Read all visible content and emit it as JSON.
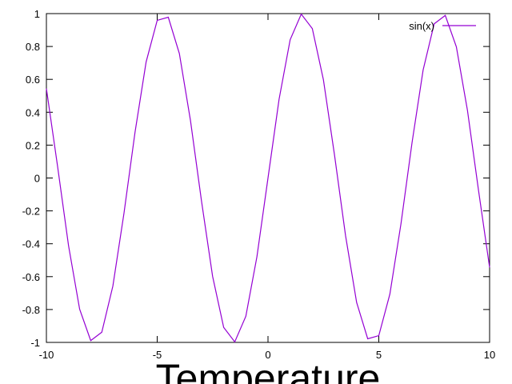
{
  "chart_data": {
    "type": "line",
    "title": "",
    "xlabel": "Temperature",
    "ylabel": "",
    "xlim": [
      -10,
      10
    ],
    "ylim": [
      -1,
      1
    ],
    "x_ticks": [
      -10,
      -5,
      0,
      5,
      10
    ],
    "y_ticks": [
      -1,
      -0.8,
      -0.6,
      -0.4,
      -0.2,
      0,
      0.2,
      0.4,
      0.6,
      0.8,
      1
    ],
    "x_tick_labels": [
      "-10",
      "-5",
      "0",
      "5",
      "10"
    ],
    "y_tick_labels": [
      "-1",
      "-0.8",
      "-0.6",
      "-0.4",
      "-0.2",
      "0",
      "0.2",
      "0.4",
      "0.6",
      "0.8",
      "1"
    ],
    "grid": false,
    "legend_position": "top-right",
    "series": [
      {
        "name": "sin(x)",
        "color": "#9400d3",
        "x": [
          -10,
          -9.5,
          -9,
          -8.5,
          -8,
          -7.5,
          -7,
          -6.5,
          -6,
          -5.5,
          -5,
          -4.5,
          -4,
          -3.5,
          -3,
          -2.5,
          -2,
          -1.5,
          -1,
          -0.5,
          0,
          0.5,
          1,
          1.5,
          2,
          2.5,
          3,
          3.5,
          4,
          4.5,
          5,
          5.5,
          6,
          6.5,
          7,
          7.5,
          8,
          8.5,
          9,
          9.5,
          10
        ],
        "y": [
          0.544,
          0.075,
          -0.412,
          -0.798,
          -0.989,
          -0.938,
          -0.657,
          -0.215,
          0.279,
          0.706,
          0.959,
          0.978,
          0.757,
          0.351,
          -0.141,
          -0.598,
          -0.909,
          -0.997,
          -0.841,
          -0.479,
          0,
          0.479,
          0.841,
          0.997,
          0.909,
          0.598,
          0.141,
          -0.351,
          -0.757,
          -0.978,
          -0.959,
          -0.706,
          -0.279,
          0.215,
          0.657,
          0.938,
          0.989,
          0.798,
          0.412,
          -0.075,
          -0.544
        ]
      }
    ]
  }
}
